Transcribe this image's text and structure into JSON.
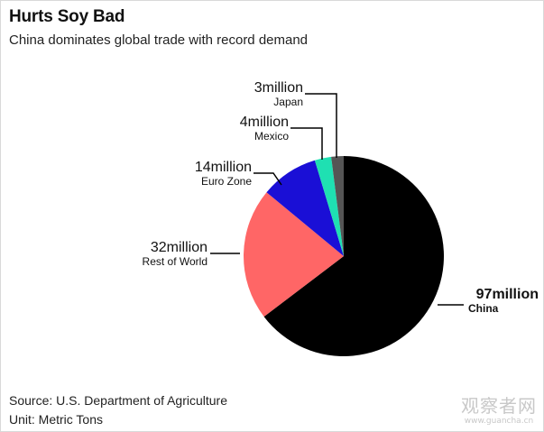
{
  "title": "Hurts Soy Bad",
  "subtitle": "China dominates global trade with record demand",
  "footer": {
    "source": "Source: U.S. Department of Agriculture",
    "unit": "Unit: Metric Tons"
  },
  "watermark": {
    "text": "观察者网",
    "url": "www.guancha.cn"
  },
  "chart_data": {
    "type": "pie",
    "start": "12 o'clock",
    "direction": "clockwise",
    "slices": [
      {
        "label": "China",
        "value": 97,
        "value_label": "97million",
        "color": "#000000"
      },
      {
        "label": "Rest of World",
        "value": 32,
        "value_label": "32million",
        "color": "#ff6666"
      },
      {
        "label": "Euro Zone",
        "value": 14,
        "value_label": "14million",
        "color": "#1a0fd6"
      },
      {
        "label": "Mexico",
        "value": 4,
        "value_label": "4million",
        "color": "#1fe0b2"
      },
      {
        "label": "Japan",
        "value": 3,
        "value_label": "3million",
        "color": "#555555"
      }
    ]
  }
}
